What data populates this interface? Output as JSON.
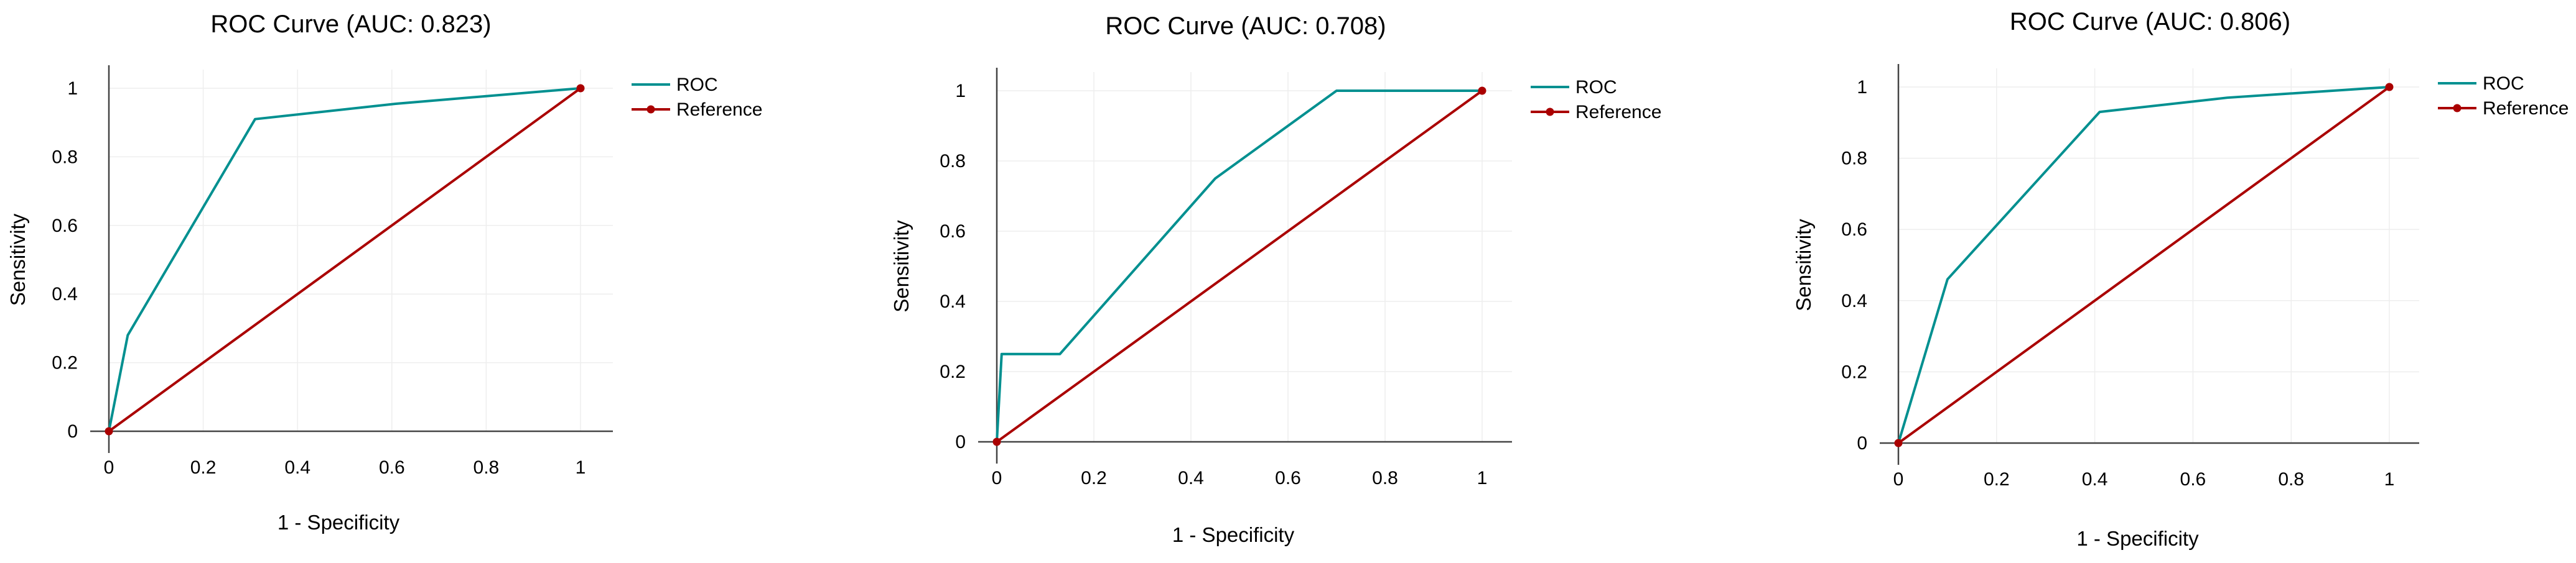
{
  "chart_data": [
    {
      "type": "line",
      "title": "ROC Curve (AUC: 0.823)",
      "xlabel": "1 - Specificity",
      "ylabel": "Sensitivity",
      "xlim": [
        0,
        1
      ],
      "ylim": [
        0,
        1
      ],
      "xticks": [
        "0",
        "0.2",
        "0.4",
        "0.6",
        "0.8",
        "1"
      ],
      "yticks": [
        "0",
        "0.2",
        "0.4",
        "0.6",
        "0.8",
        "1"
      ],
      "grid": true,
      "legend_position": "top-right",
      "series": [
        {
          "name": "ROC",
          "color": "#009090",
          "x": [
            0,
            0.04,
            0.31,
            0.61,
            1.0
          ],
          "y": [
            0,
            0.28,
            0.91,
            0.955,
            1.0
          ]
        },
        {
          "name": "Reference",
          "color": "#aa0000",
          "x": [
            0,
            1
          ],
          "y": [
            0,
            1
          ]
        }
      ]
    },
    {
      "type": "line",
      "title": "ROC Curve (AUC: 0.708)",
      "xlabel": "1 - Specificity",
      "ylabel": "Sensitivity",
      "xlim": [
        0,
        1
      ],
      "ylim": [
        0,
        1
      ],
      "xticks": [
        "0",
        "0.2",
        "0.4",
        "0.6",
        "0.8",
        "1"
      ],
      "yticks": [
        "0",
        "0.2",
        "0.4",
        "0.6",
        "0.8",
        "1"
      ],
      "grid": true,
      "legend_position": "top-right",
      "series": [
        {
          "name": "ROC",
          "color": "#009090",
          "x": [
            0,
            0.01,
            0.13,
            0.45,
            0.7,
            1.0
          ],
          "y": [
            0,
            0.25,
            0.25,
            0.75,
            1.0,
            1.0
          ]
        },
        {
          "name": "Reference",
          "color": "#aa0000",
          "x": [
            0,
            1
          ],
          "y": [
            0,
            1
          ]
        }
      ]
    },
    {
      "type": "line",
      "title": "ROC Curve (AUC: 0.806)",
      "xlabel": "1 - Specificity",
      "ylabel": "Sensitivity",
      "xlim": [
        0,
        1
      ],
      "ylim": [
        0,
        1
      ],
      "xticks": [
        "0",
        "0.2",
        "0.4",
        "0.6",
        "0.8",
        "1"
      ],
      "yticks": [
        "0",
        "0.2",
        "0.4",
        "0.6",
        "0.8",
        "1"
      ],
      "grid": true,
      "legend_position": "top-right",
      "series": [
        {
          "name": "ROC",
          "color": "#009090",
          "x": [
            0,
            0.1,
            0.41,
            0.67,
            1.0
          ],
          "y": [
            0,
            0.46,
            0.93,
            0.97,
            1.0
          ]
        },
        {
          "name": "Reference",
          "color": "#aa0000",
          "x": [
            0,
            1
          ],
          "y": [
            0,
            1
          ]
        }
      ]
    }
  ]
}
